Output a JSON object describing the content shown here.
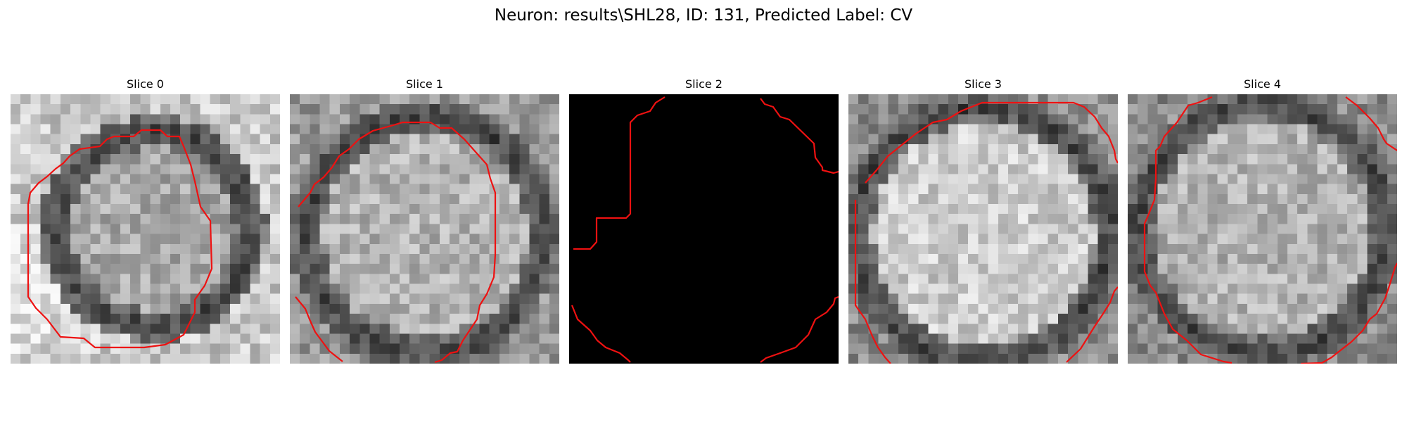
{
  "figure": {
    "title": "Neuron: results\\SHL28, ID: 131, Predicted Label: CV"
  },
  "slices": [
    {
      "label": "Slice 0",
      "blank": false
    },
    {
      "label": "Slice 1",
      "blank": false
    },
    {
      "label": "Slice 2",
      "blank": true
    },
    {
      "label": "Slice 3",
      "blank": false
    },
    {
      "label": "Slice 4",
      "blank": false
    }
  ],
  "colors": {
    "contour": "#ee1111",
    "background": "#ffffff",
    "blank_slice": "#000000"
  }
}
